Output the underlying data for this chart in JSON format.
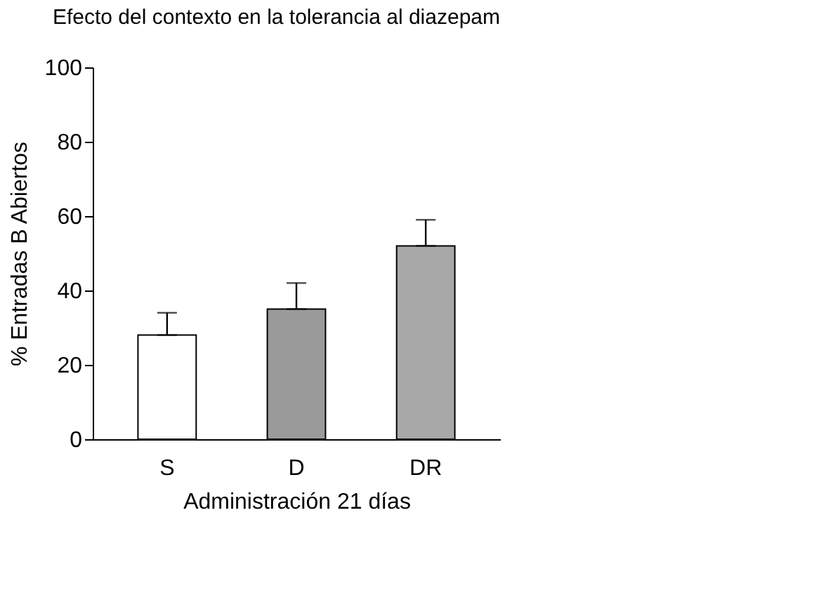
{
  "chart_data": {
    "type": "bar",
    "title": "Efecto del contexto en la tolerancia al diazepam",
    "xlabel": "Administración 21 días",
    "ylabel": "% Entradas B Abiertos",
    "categories": [
      "S",
      "D",
      "DR"
    ],
    "values": [
      28,
      35,
      52
    ],
    "errors": [
      [
        28,
        34
      ],
      [
        35,
        42
      ],
      [
        52,
        59
      ]
    ],
    "colors": [
      "#ffffff",
      "#9a9a9a",
      "#a8a8a8"
    ],
    "ylim": [
      0,
      100
    ],
    "yticks": [
      0,
      20,
      40,
      60,
      80,
      100
    ],
    "grid": false
  }
}
